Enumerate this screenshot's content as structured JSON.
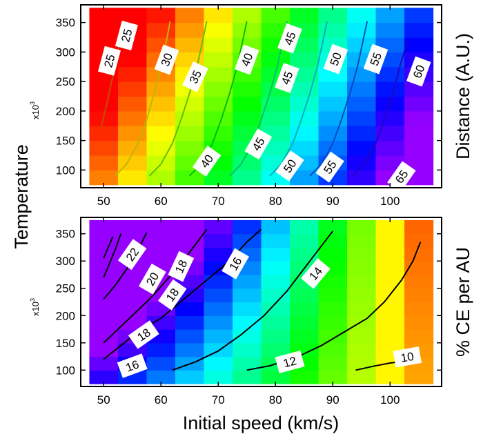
{
  "figure": {
    "ylabel": "Temperature",
    "xlabel": "Initial speed (km/s)",
    "y_multiplier_base": "x10",
    "y_multiplier_exp": "3"
  },
  "chart_data": [
    {
      "type": "heatmap",
      "panel": "top",
      "ylabel_right": "Distance (A.U.)",
      "colorscale": "rainbow: red at 25 to violet at 65",
      "x_edges": [
        47.5,
        52.5,
        57.5,
        62.5,
        67.5,
        72.5,
        77.5,
        82.5,
        87.5,
        92.5,
        97.5,
        102.5,
        107.5
      ],
      "y_edges": [
        75,
        100,
        125,
        150,
        175,
        200,
        225,
        250,
        275,
        300,
        325,
        350,
        375
      ],
      "xlim": [
        46,
        109
      ],
      "ylim": [
        70,
        380
      ],
      "xticks": [
        50,
        60,
        70,
        80,
        90,
        100
      ],
      "yticks": [
        100,
        150,
        200,
        250,
        300,
        350
      ],
      "xtick_labels": [
        "50",
        "60",
        "70",
        "80",
        "90",
        "100"
      ],
      "ytick_labels": [
        "100",
        "150",
        "200",
        "250",
        "300",
        "350"
      ],
      "grid": false,
      "color_range": [
        24,
        67
      ],
      "contours": [
        {
          "level": 25,
          "x": [
            49.5,
            50.5,
            51.5,
            52.4,
            53.0,
            53.4
          ],
          "y": [
            170,
            210,
            255,
            295,
            330,
            352
          ]
        },
        {
          "level": 30,
          "x": [
            52.0,
            54.0,
            56.0,
            57.5,
            58.8,
            60.0,
            61.0,
            61.6
          ],
          "y": [
            90,
            110,
            145,
            185,
            230,
            275,
            320,
            352
          ]
        },
        {
          "level": 35,
          "x": [
            58.0,
            60.0,
            62.0,
            63.5,
            65.0,
            66.3,
            67.3,
            68.0
          ],
          "y": [
            90,
            110,
            145,
            185,
            230,
            275,
            320,
            352
          ]
        },
        {
          "level": 40,
          "x": [
            65.0,
            67.0,
            69.0,
            70.5,
            72.0,
            73.3,
            74.3,
            75.0
          ],
          "y": [
            90,
            110,
            145,
            185,
            230,
            275,
            320,
            352
          ]
        },
        {
          "level": 45,
          "x": [
            72.0,
            74.0,
            76.0,
            77.5,
            79.0,
            80.3,
            81.3,
            82.0
          ],
          "y": [
            90,
            110,
            145,
            185,
            230,
            275,
            320,
            352
          ]
        },
        {
          "level": 50,
          "x": [
            79.0,
            81.0,
            83.0,
            84.5,
            86.0,
            87.3,
            88.3,
            89.0
          ],
          "y": [
            90,
            110,
            145,
            185,
            230,
            275,
            320,
            352
          ]
        },
        {
          "level": 55,
          "x": [
            86.0,
            88.0,
            90.0,
            91.5,
            93.0,
            94.3,
            95.3,
            96.0
          ],
          "y": [
            90,
            110,
            145,
            185,
            230,
            275,
            320,
            352
          ]
        },
        {
          "level": 60,
          "x": [
            93.5,
            95.5,
            97.5,
            99.0,
            100.5,
            101.7,
            102.6,
            103.2
          ],
          "y": [
            90,
            110,
            145,
            185,
            230,
            275,
            305,
            320
          ]
        }
      ],
      "contour_labels": [
        {
          "text": "25",
          "x": 54.0,
          "y": 328,
          "angle": -75
        },
        {
          "text": "25",
          "x": 51.0,
          "y": 285,
          "angle": -75
        },
        {
          "text": "30",
          "x": 61.0,
          "y": 287,
          "angle": -70
        },
        {
          "text": "35",
          "x": 66.0,
          "y": 258,
          "angle": -65
        },
        {
          "text": "40",
          "x": 75.0,
          "y": 287,
          "angle": -70
        },
        {
          "text": "45",
          "x": 82.5,
          "y": 323,
          "angle": -70
        },
        {
          "text": "45",
          "x": 82.0,
          "y": 256,
          "angle": -70
        },
        {
          "text": "50",
          "x": 90.5,
          "y": 288,
          "angle": -70
        },
        {
          "text": "55",
          "x": 97.5,
          "y": 288,
          "angle": -70
        },
        {
          "text": "60",
          "x": 105.0,
          "y": 267,
          "angle": -70
        },
        {
          "text": "40",
          "x": 68.0,
          "y": 115,
          "angle": -55
        },
        {
          "text": "45",
          "x": 77.0,
          "y": 144,
          "angle": -60
        },
        {
          "text": "50",
          "x": 82.5,
          "y": 107,
          "angle": -55
        },
        {
          "text": "55",
          "x": 89.5,
          "y": 105,
          "angle": -55
        },
        {
          "text": "65",
          "x": 102.0,
          "y": 89,
          "angle": -55
        }
      ]
    },
    {
      "type": "heatmap",
      "panel": "bottom",
      "ylabel_right": "% CE per AU",
      "colorscale": "rainbow: red at low values to violet at high values",
      "x_edges": [
        47.5,
        52.5,
        57.5,
        62.5,
        67.5,
        72.5,
        77.5,
        82.5,
        87.5,
        92.5,
        97.5,
        102.5,
        107.5
      ],
      "y_edges": [
        75,
        100,
        125,
        150,
        175,
        200,
        225,
        250,
        275,
        300,
        325,
        350,
        375
      ],
      "xlim": [
        46,
        109
      ],
      "ylim": [
        70,
        380
      ],
      "xticks": [
        50,
        60,
        70,
        80,
        90,
        100
      ],
      "yticks": [
        100,
        150,
        200,
        250,
        300,
        350
      ],
      "xtick_labels": [
        "50",
        "60",
        "70",
        "80",
        "90",
        "100"
      ],
      "ytick_labels": [
        "100",
        "150",
        "200",
        "250",
        "300",
        "350"
      ],
      "grid": false,
      "color_range": [
        8.8,
        24
      ],
      "contours": [
        {
          "level": 10,
          "x": [
            94,
            97,
            100,
            103,
            105
          ],
          "y": [
            100,
            107,
            113,
            117,
            120
          ]
        },
        {
          "level": 12,
          "x": [
            75,
            79,
            84,
            88,
            92,
            96,
            99,
            102,
            104,
            105.3
          ],
          "y": [
            100,
            108,
            125,
            145,
            170,
            195,
            225,
            265,
            300,
            335
          ]
        },
        {
          "level": 14,
          "x": [
            62,
            66,
            70,
            74,
            78,
            82,
            86,
            90
          ],
          "y": [
            100,
            115,
            135,
            165,
            200,
            245,
            300,
            355
          ]
        },
        {
          "level": 16,
          "x": [
            50,
            53,
            56,
            60,
            64,
            68,
            72,
            75,
            77.5
          ],
          "y": [
            120,
            145,
            170,
            195,
            230,
            265,
            300,
            335,
            358
          ]
        },
        {
          "level": 18,
          "x": [
            50,
            52.5,
            55,
            58,
            61,
            63.5,
            66,
            68
          ],
          "y": [
            150,
            175,
            200,
            230,
            265,
            295,
            330,
            358
          ]
        },
        {
          "level": 20,
          "x": [
            50,
            52,
            54,
            56,
            57.5
          ],
          "y": [
            230,
            255,
            285,
            320,
            352
          ]
        },
        {
          "level": 22,
          "x": [
            50,
            51,
            52,
            53
          ],
          "y": [
            270,
            295,
            320,
            350
          ]
        },
        {
          "level": 24,
          "x": [
            50,
            50.8,
            51.6
          ],
          "y": [
            305,
            325,
            345
          ]
        }
      ],
      "contour_labels": [
        {
          "text": "22",
          "x": 55.0,
          "y": 312,
          "angle": -55
        },
        {
          "text": "20",
          "x": 58.5,
          "y": 267,
          "angle": -60
        },
        {
          "text": "18",
          "x": 63.5,
          "y": 290,
          "angle": -65
        },
        {
          "text": "18",
          "x": 62.0,
          "y": 238,
          "angle": -55
        },
        {
          "text": "16",
          "x": 73.0,
          "y": 295,
          "angle": -60
        },
        {
          "text": "14",
          "x": 87.0,
          "y": 277,
          "angle": -50
        },
        {
          "text": "18",
          "x": 57.0,
          "y": 165,
          "angle": -35
        },
        {
          "text": "16",
          "x": 55.0,
          "y": 108,
          "angle": -20
        },
        {
          "text": "12",
          "x": 82.5,
          "y": 115,
          "angle": -15
        },
        {
          "text": "10",
          "x": 103.0,
          "y": 124,
          "angle": -10
        }
      ]
    }
  ]
}
